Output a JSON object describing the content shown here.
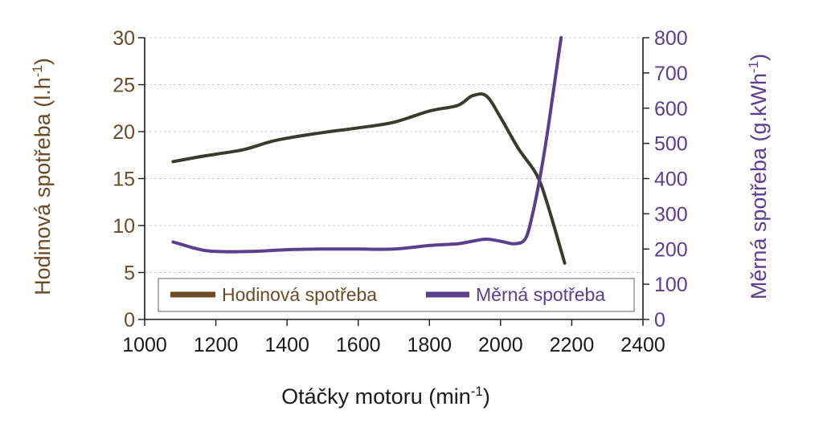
{
  "chart_data": {
    "type": "line",
    "title": "",
    "xlabel": "Otáčky motoru (min",
    "xlabel_sup": "-1",
    "xlabel_tail": ")",
    "ylabel_left": "Hodinová spotřeba (l.h",
    "ylabel_left_sup": "-1",
    "ylabel_left_tail": ")",
    "ylabel_right": "Měrná spotřeba (g.kWh",
    "ylabel_right_sup": "-1",
    "ylabel_right_tail": ")",
    "xlim": [
      1000,
      2400
    ],
    "xticks": [
      "1000",
      "1200",
      "1400",
      "1600",
      "1800",
      "2000",
      "2200",
      "2400"
    ],
    "ylim_left": [
      0,
      30
    ],
    "yticks_left": [
      "0",
      "5",
      "10",
      "15",
      "20",
      "25",
      "30"
    ],
    "ylim_right": [
      0,
      800
    ],
    "yticks_right": [
      "0",
      "100",
      "200",
      "300",
      "400",
      "500",
      "600",
      "700",
      "800"
    ],
    "grid": "horizontal dashed",
    "legend_position": "bottom-center",
    "series": [
      {
        "name": "Hodinová spotřeba",
        "axis": "left",
        "color": "#3b3a2e",
        "legend_color": "#6b4a26",
        "x": [
          1080,
          1150,
          1200,
          1280,
          1350,
          1400,
          1500,
          1600,
          1700,
          1800,
          1880,
          1920,
          1960,
          2000,
          2050,
          2100,
          2130,
          2180
        ],
        "y": [
          16.8,
          17.3,
          17.6,
          18.1,
          18.9,
          19.3,
          19.9,
          20.4,
          21.0,
          22.2,
          22.8,
          23.8,
          23.8,
          21.5,
          18.2,
          15.5,
          12.5,
          6.0
        ]
      },
      {
        "name": "Měrná spotřeba",
        "axis": "right",
        "color": "#5a3f8e",
        "legend_color": "#5a3f8e",
        "x": [
          1080,
          1150,
          1200,
          1300,
          1400,
          1500,
          1600,
          1700,
          1800,
          1880,
          1920,
          1960,
          2000,
          2040,
          2070,
          2090,
          2110,
          2130,
          2150,
          2170
        ],
        "y": [
          220,
          200,
          193,
          193,
          198,
          200,
          200,
          200,
          210,
          215,
          222,
          228,
          222,
          215,
          230,
          300,
          400,
          520,
          660,
          800
        ]
      }
    ]
  }
}
